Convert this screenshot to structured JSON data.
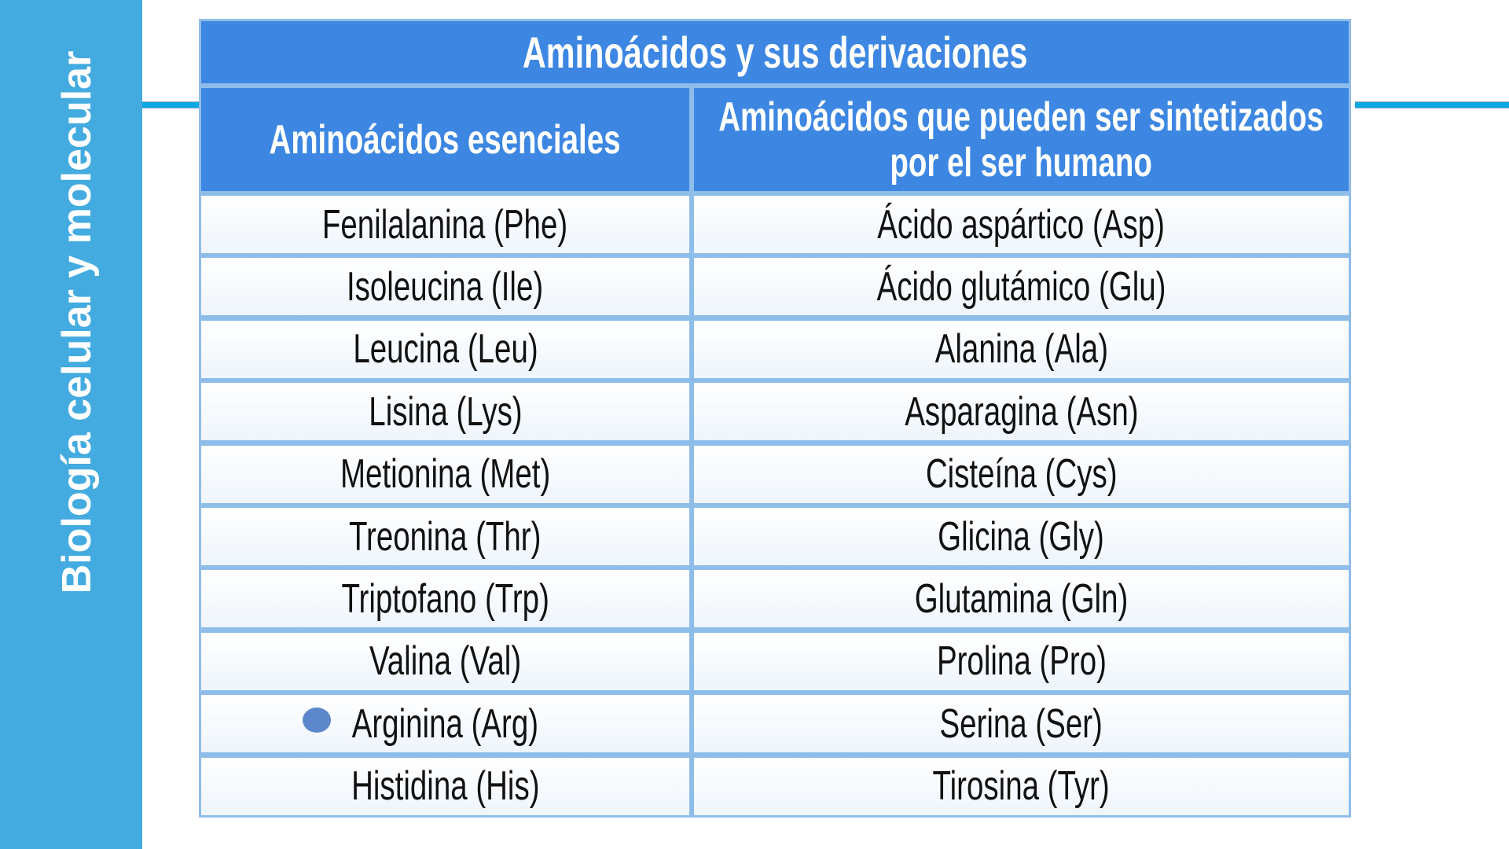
{
  "sidebar": {
    "title": "Biología celular y molecular"
  },
  "table": {
    "title": "Aminoácidos y sus derivaciones",
    "headers": [
      "Aminoácidos esenciales",
      "Aminoácidos que pueden ser sintetizados por el ser humano"
    ],
    "header_lines": [
      "Aminoácidos que pueden ser sintetizados",
      "por el ser humano"
    ],
    "rows": [
      [
        "Fenilalanina (Phe)",
        "Ácido aspártico (Asp)"
      ],
      [
        "Isoleucina (Ile)",
        "Ácido glutámico (Glu)"
      ],
      [
        "Leucina (Leu)",
        "Alanina (Ala)"
      ],
      [
        "Lisina (Lys)",
        "Asparagina (Asn)"
      ],
      [
        "Metionina (Met)",
        "Cisteína (Cys)"
      ],
      [
        "Treonina (Thr)",
        "Glicina (Gly)"
      ],
      [
        "Triptofano (Trp)",
        "Glutamina (Gln)"
      ],
      [
        "Valina (Val)",
        "Prolina (Pro)"
      ],
      [
        "Arginina (Arg)",
        "Serina (Ser)"
      ],
      [
        "Histidina (His)",
        "Tirosina (Tyr)"
      ]
    ]
  },
  "colors": {
    "sidebar": "#43abe0",
    "header": "#3d87e2",
    "grid": "#8fbde9",
    "rule": "#0aa8e2",
    "bullet": "#5c88cb"
  }
}
